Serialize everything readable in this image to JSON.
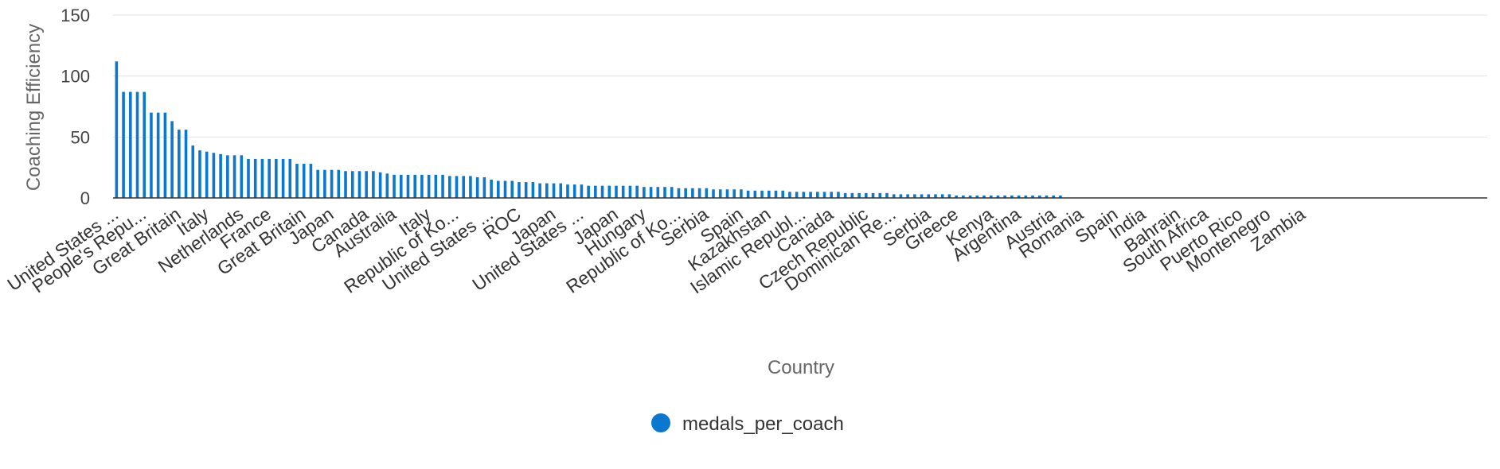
{
  "chart_data": {
    "type": "bar",
    "title": "",
    "xlabel": "Country",
    "ylabel": "Coaching Efficiency",
    "ylim": [
      0,
      150
    ],
    "yticks": [
      0,
      50,
      100,
      150
    ],
    "grid": true,
    "legend_position": "bottom",
    "series": [
      {
        "name": "medals_per_coach",
        "color": "#0b78d0",
        "values": [
          112,
          87,
          87,
          87,
          87,
          70,
          70,
          70,
          63,
          56,
          56,
          43,
          39,
          38,
          37,
          36,
          35,
          35,
          35,
          32,
          32,
          32,
          32,
          32,
          32,
          32,
          28,
          28,
          28,
          23,
          23,
          23,
          23,
          22,
          22,
          22,
          22,
          22,
          21,
          20,
          19,
          19,
          19,
          19,
          19,
          19,
          19,
          19,
          18,
          18,
          18,
          18,
          17,
          17,
          15,
          14,
          14,
          14,
          13,
          13,
          13,
          12,
          12,
          12,
          12,
          11,
          11,
          11,
          10,
          10,
          10,
          10,
          10,
          10,
          10,
          10,
          9,
          9,
          9,
          9,
          9,
          8,
          8,
          8,
          8,
          8,
          7,
          7,
          7,
          7,
          7,
          6,
          6,
          6,
          6,
          6,
          6,
          5,
          5,
          5,
          5,
          5,
          5,
          5,
          5,
          4,
          4,
          4,
          4,
          4,
          4,
          4,
          3,
          3,
          3,
          3,
          3,
          3,
          3,
          3,
          3,
          2,
          2,
          2,
          2,
          2,
          2,
          2,
          2,
          2,
          2,
          2,
          2,
          2,
          2,
          2,
          2,
          0,
          0,
          0,
          0,
          0,
          0,
          0,
          0,
          0,
          0,
          0,
          0,
          0,
          0,
          0,
          0,
          0,
          0,
          0,
          0,
          0,
          0,
          0,
          0,
          0,
          0,
          0,
          0,
          0,
          0,
          0,
          0,
          0,
          0,
          0,
          0,
          0,
          0,
          0,
          0,
          0,
          0,
          0,
          0,
          0,
          0,
          0,
          0,
          0,
          0,
          0,
          0,
          0,
          0,
          0,
          0,
          0,
          0,
          0,
          0,
          0
        ]
      }
    ],
    "category_labels": [
      {
        "index": 0,
        "label": "United States ..."
      },
      {
        "index": 4,
        "label": "People's Repu..."
      },
      {
        "index": 9,
        "label": "Great Britain"
      },
      {
        "index": 13,
        "label": "Italy"
      },
      {
        "index": 18,
        "label": "Netherlands"
      },
      {
        "index": 22,
        "label": "France"
      },
      {
        "index": 27,
        "label": "Great Britain"
      },
      {
        "index": 31,
        "label": "Japan"
      },
      {
        "index": 36,
        "label": "Canada"
      },
      {
        "index": 40,
        "label": "Australia"
      },
      {
        "index": 45,
        "label": "Italy"
      },
      {
        "index": 49,
        "label": "Republic of Ko..."
      },
      {
        "index": 54,
        "label": "United States ..."
      },
      {
        "index": 58,
        "label": "ROC"
      },
      {
        "index": 63,
        "label": "Japan"
      },
      {
        "index": 67,
        "label": "United States ..."
      },
      {
        "index": 72,
        "label": "Japan"
      },
      {
        "index": 76,
        "label": "Hungary"
      },
      {
        "index": 81,
        "label": "Republic of Ko..."
      },
      {
        "index": 85,
        "label": "Serbia"
      },
      {
        "index": 90,
        "label": "Spain"
      },
      {
        "index": 94,
        "label": "Kazakhstan"
      },
      {
        "index": 99,
        "label": "Islamic Republ..."
      },
      {
        "index": 103,
        "label": "Canada"
      },
      {
        "index": 108,
        "label": "Czech Republic"
      },
      {
        "index": 112,
        "label": "Dominican Re..."
      },
      {
        "index": 117,
        "label": "Serbia"
      },
      {
        "index": 121,
        "label": "Greece"
      },
      {
        "index": 126,
        "label": "Kenya"
      },
      {
        "index": 130,
        "label": "Argentina"
      },
      {
        "index": 135,
        "label": "Austria"
      },
      {
        "index": 139,
        "label": "Romania"
      },
      {
        "index": 144,
        "label": "Spain"
      },
      {
        "index": 148,
        "label": "India"
      },
      {
        "index": 153,
        "label": "Bahrain"
      },
      {
        "index": 157,
        "label": "South Africa"
      },
      {
        "index": 162,
        "label": "Puerto Rico"
      },
      {
        "index": 166,
        "label": "Montenegro"
      },
      {
        "index": 171,
        "label": "Zambia"
      }
    ]
  },
  "legend": {
    "items": [
      {
        "label": "medals_per_coach",
        "color": "#0b78d0"
      }
    ]
  }
}
